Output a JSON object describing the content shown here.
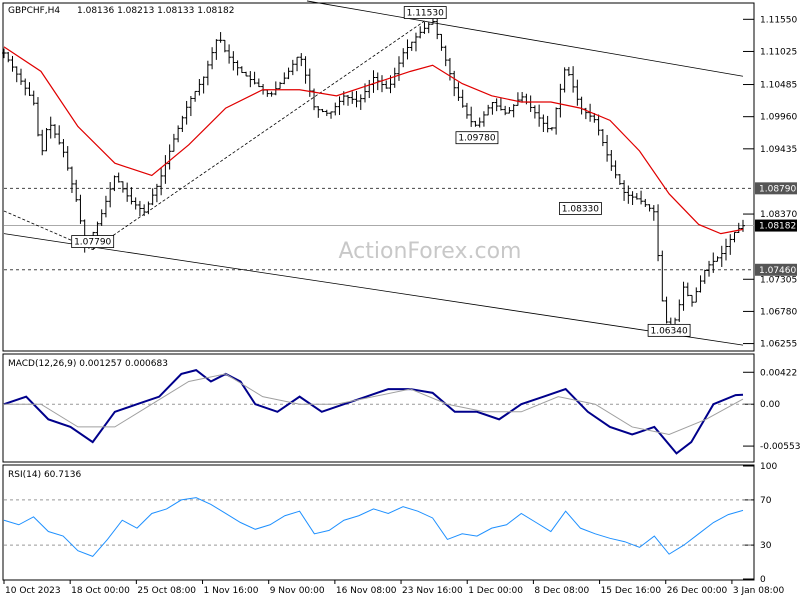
{
  "header": {
    "symbol": "GBPCHF,H4",
    "ohlc": "1.08136 1.08213 1.08133 1.08182",
    "macd_label": "MACD(12,26,9) 0.001257 0.000683",
    "rsi_label": "RSI(14) 60.7136"
  },
  "watermark": "ActionForex.com",
  "colors": {
    "bars": "#000000",
    "ma": "#e00000",
    "macd": "#00008b",
    "signal": "#a0a0a0",
    "rsi": "#1e90ff",
    "grid": "#808080"
  },
  "chart_data": [
    {
      "type": "ohlc",
      "name": "price",
      "x": [
        "10 Oct 2023",
        "18 Oct 00:00",
        "25 Oct 08:00",
        "1 Nov 16:00",
        "9 Nov 00:00",
        "16 Nov 08:00",
        "23 Nov 16:00",
        "1 Dec 00:00",
        "8 Dec 08:00",
        "15 Dec 16:00",
        "26 Dec 00:00",
        "3 Jan 08:00"
      ],
      "ylim": [
        1.0615,
        1.118
      ],
      "yticks": [
        "1.11550",
        "1.11025",
        "1.10485",
        "1.09960",
        "1.09435",
        "1.08370",
        "1.07305",
        "1.06780",
        "1.06255"
      ],
      "close_path": [
        [
          0,
          1.11
        ],
        [
          0.02,
          1.106
        ],
        [
          0.04,
          1.102
        ],
        [
          0.05,
          1.093
        ],
        [
          0.06,
          1.099
        ],
        [
          0.08,
          1.094
        ],
        [
          0.1,
          1.085
        ],
        [
          0.11,
          1.078
        ],
        [
          0.13,
          1.083
        ],
        [
          0.15,
          1.09
        ],
        [
          0.17,
          1.086
        ],
        [
          0.19,
          1.084
        ],
        [
          0.21,
          1.089
        ],
        [
          0.23,
          1.096
        ],
        [
          0.25,
          1.102
        ],
        [
          0.27,
          1.106
        ],
        [
          0.29,
          1.113
        ],
        [
          0.3,
          1.11
        ],
        [
          0.32,
          1.107
        ],
        [
          0.34,
          1.105
        ],
        [
          0.36,
          1.103
        ],
        [
          0.38,
          1.106
        ],
        [
          0.4,
          1.11
        ],
        [
          0.42,
          1.101
        ],
        [
          0.44,
          1.1
        ],
        [
          0.46,
          1.103
        ],
        [
          0.48,
          1.102
        ],
        [
          0.5,
          1.106
        ],
        [
          0.52,
          1.104
        ],
        [
          0.54,
          1.11
        ],
        [
          0.56,
          1.113
        ],
        [
          0.58,
          1.1153
        ],
        [
          0.6,
          1.108
        ],
        [
          0.61,
          1.104
        ],
        [
          0.63,
          1.099
        ],
        [
          0.64,
          1.098
        ],
        [
          0.66,
          1.102
        ],
        [
          0.68,
          1.1
        ],
        [
          0.7,
          1.103
        ],
        [
          0.72,
          1.1
        ],
        [
          0.74,
          1.097
        ],
        [
          0.76,
          1.108
        ],
        [
          0.78,
          1.101
        ],
        [
          0.8,
          1.099
        ],
        [
          0.82,
          1.092
        ],
        [
          0.84,
          1.087
        ],
        [
          0.86,
          1.086
        ],
        [
          0.88,
          1.084
        ],
        [
          0.89,
          1.07
        ],
        [
          0.9,
          1.064
        ],
        [
          0.91,
          1.067
        ],
        [
          0.92,
          1.072
        ],
        [
          0.93,
          1.069
        ],
        [
          0.95,
          1.075
        ],
        [
          0.97,
          1.077
        ],
        [
          0.99,
          1.081
        ],
        [
          1.0,
          1.0818
        ]
      ],
      "ma_path": [
        [
          0,
          1.111
        ],
        [
          0.05,
          1.107
        ],
        [
          0.1,
          1.098
        ],
        [
          0.15,
          1.092
        ],
        [
          0.2,
          1.09
        ],
        [
          0.25,
          1.095
        ],
        [
          0.3,
          1.101
        ],
        [
          0.35,
          1.104
        ],
        [
          0.4,
          1.104
        ],
        [
          0.45,
          1.103
        ],
        [
          0.5,
          1.105
        ],
        [
          0.55,
          1.107
        ],
        [
          0.58,
          1.108
        ],
        [
          0.62,
          1.105
        ],
        [
          0.66,
          1.103
        ],
        [
          0.7,
          1.102
        ],
        [
          0.74,
          1.102
        ],
        [
          0.78,
          1.101
        ],
        [
          0.82,
          1.099
        ],
        [
          0.86,
          1.094
        ],
        [
          0.9,
          1.087
        ],
        [
          0.94,
          1.082
        ],
        [
          0.97,
          1.0805
        ],
        [
          1.0,
          1.0812
        ]
      ],
      "hlines": [
        {
          "value": 1.0879,
          "label": "1.08790"
        },
        {
          "value": 1.0746,
          "label": "1.07460"
        }
      ],
      "current": {
        "value": 1.08182,
        "label": "1.08182"
      },
      "channel_lines": [
        {
          "from": [
            0.0,
            1.0805
          ],
          "to": [
            1.0,
            1.0623
          ]
        },
        {
          "from": [
            0.41,
            1.1185
          ],
          "to": [
            1.0,
            1.1062
          ]
        }
      ],
      "dashed_lines": [
        {
          "from": [
            0.12,
            1.0779
          ],
          "to": [
            0.57,
            1.1153
          ]
        },
        {
          "from": [
            0.0,
            1.0842
          ],
          "to": [
            0.12,
            1.0779
          ]
        }
      ],
      "annotations": [
        {
          "x": 0.12,
          "y": 1.0779,
          "label": "1.07790"
        },
        {
          "x": 0.57,
          "y": 1.1153,
          "label": "1.11530"
        },
        {
          "x": 0.64,
          "y": 1.0978,
          "label": "1.09780"
        },
        {
          "x": 0.78,
          "y": 1.0833,
          "label": "1.08330"
        },
        {
          "x": 0.9,
          "y": 1.0634,
          "label": "1.06340"
        }
      ]
    },
    {
      "type": "line",
      "name": "MACD(12,26,9)",
      "ylim": [
        -0.0075,
        0.0065
      ],
      "yticks": [
        "0.00422",
        "0.00",
        "-0.00553"
      ],
      "series": [
        {
          "name": "macd",
          "points": [
            [
              0,
              0.0
            ],
            [
              0.03,
              0.001
            ],
            [
              0.06,
              -0.002
            ],
            [
              0.09,
              -0.003
            ],
            [
              0.12,
              -0.005
            ],
            [
              0.15,
              -0.001
            ],
            [
              0.18,
              0.0
            ],
            [
              0.21,
              0.001
            ],
            [
              0.24,
              0.004
            ],
            [
              0.26,
              0.0045
            ],
            [
              0.28,
              0.003
            ],
            [
              0.3,
              0.004
            ],
            [
              0.32,
              0.003
            ],
            [
              0.34,
              0.0
            ],
            [
              0.37,
              -0.001
            ],
            [
              0.4,
              0.001
            ],
            [
              0.43,
              -0.001
            ],
            [
              0.46,
              0.0
            ],
            [
              0.49,
              0.001
            ],
            [
              0.52,
              0.002
            ],
            [
              0.55,
              0.002
            ],
            [
              0.58,
              0.0015
            ],
            [
              0.61,
              -0.001
            ],
            [
              0.64,
              -0.001
            ],
            [
              0.67,
              -0.002
            ],
            [
              0.7,
              0.0
            ],
            [
              0.73,
              0.001
            ],
            [
              0.76,
              0.002
            ],
            [
              0.79,
              -0.001
            ],
            [
              0.82,
              -0.003
            ],
            [
              0.85,
              -0.004
            ],
            [
              0.88,
              -0.003
            ],
            [
              0.91,
              -0.0065
            ],
            [
              0.93,
              -0.005
            ],
            [
              0.96,
              0.0
            ],
            [
              0.99,
              0.0012
            ],
            [
              1.0,
              0.001257
            ]
          ]
        },
        {
          "name": "signal",
          "points": [
            [
              0,
              0.0
            ],
            [
              0.05,
              0.0
            ],
            [
              0.1,
              -0.003
            ],
            [
              0.15,
              -0.003
            ],
            [
              0.2,
              0.0
            ],
            [
              0.25,
              0.003
            ],
            [
              0.3,
              0.004
            ],
            [
              0.35,
              0.001
            ],
            [
              0.4,
              0.0
            ],
            [
              0.45,
              0.0
            ],
            [
              0.5,
              0.001
            ],
            [
              0.55,
              0.002
            ],
            [
              0.6,
              0.0
            ],
            [
              0.65,
              -0.001
            ],
            [
              0.7,
              -0.001
            ],
            [
              0.75,
              0.001
            ],
            [
              0.8,
              0.0
            ],
            [
              0.85,
              -0.003
            ],
            [
              0.9,
              -0.004
            ],
            [
              0.95,
              -0.002
            ],
            [
              1.0,
              0.000683
            ]
          ]
        }
      ]
    },
    {
      "type": "line",
      "name": "RSI(14)",
      "ylim": [
        0,
        100
      ],
      "yticks": [
        "100",
        "70",
        "30",
        "0"
      ],
      "levels": [
        70,
        30
      ],
      "series": [
        {
          "name": "rsi",
          "points": [
            [
              0,
              52
            ],
            [
              0.02,
              48
            ],
            [
              0.04,
              55
            ],
            [
              0.06,
              42
            ],
            [
              0.08,
              38
            ],
            [
              0.1,
              25
            ],
            [
              0.12,
              20
            ],
            [
              0.14,
              35
            ],
            [
              0.16,
              52
            ],
            [
              0.18,
              45
            ],
            [
              0.2,
              58
            ],
            [
              0.22,
              62
            ],
            [
              0.24,
              70
            ],
            [
              0.26,
              72
            ],
            [
              0.28,
              66
            ],
            [
              0.3,
              58
            ],
            [
              0.32,
              50
            ],
            [
              0.34,
              44
            ],
            [
              0.36,
              48
            ],
            [
              0.38,
              56
            ],
            [
              0.4,
              60
            ],
            [
              0.42,
              40
            ],
            [
              0.44,
              43
            ],
            [
              0.46,
              52
            ],
            [
              0.48,
              56
            ],
            [
              0.5,
              62
            ],
            [
              0.52,
              58
            ],
            [
              0.54,
              64
            ],
            [
              0.56,
              60
            ],
            [
              0.58,
              54
            ],
            [
              0.6,
              35
            ],
            [
              0.62,
              40
            ],
            [
              0.64,
              38
            ],
            [
              0.66,
              45
            ],
            [
              0.68,
              48
            ],
            [
              0.7,
              58
            ],
            [
              0.72,
              50
            ],
            [
              0.74,
              42
            ],
            [
              0.76,
              60
            ],
            [
              0.78,
              45
            ],
            [
              0.8,
              40
            ],
            [
              0.82,
              36
            ],
            [
              0.84,
              33
            ],
            [
              0.86,
              28
            ],
            [
              0.88,
              38
            ],
            [
              0.9,
              22
            ],
            [
              0.92,
              30
            ],
            [
              0.94,
              40
            ],
            [
              0.96,
              50
            ],
            [
              0.98,
              57
            ],
            [
              1.0,
              60.7
            ]
          ]
        }
      ]
    }
  ]
}
